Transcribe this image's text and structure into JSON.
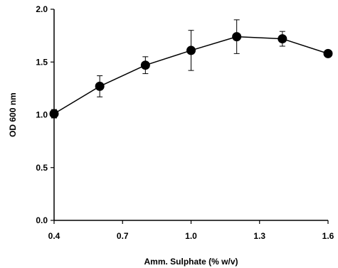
{
  "chart_data": {
    "type": "line",
    "title": "",
    "xlabel": "Amm. Sulphate (% w/v)",
    "ylabel": "OD 600 nm",
    "xlim": [
      0.4,
      1.6
    ],
    "ylim": [
      0.0,
      2.0
    ],
    "x_ticks": [
      "0.4",
      "0.7",
      "1.0",
      "1.3",
      "1.6"
    ],
    "y_ticks": [
      "0.0",
      "0.5",
      "1.0",
      "1.5",
      "2.0"
    ],
    "grid": false,
    "legend": "none",
    "marker": "filled-circle",
    "color": "#000000",
    "series": [
      {
        "x": [
          0.4,
          0.6,
          0.8,
          1.0,
          1.2,
          1.4,
          1.6
        ],
        "y": [
          1.01,
          1.27,
          1.47,
          1.61,
          1.74,
          1.72,
          1.58
        ],
        "error": [
          0.04,
          0.1,
          0.08,
          0.19,
          0.16,
          0.07,
          0.02
        ]
      }
    ]
  }
}
